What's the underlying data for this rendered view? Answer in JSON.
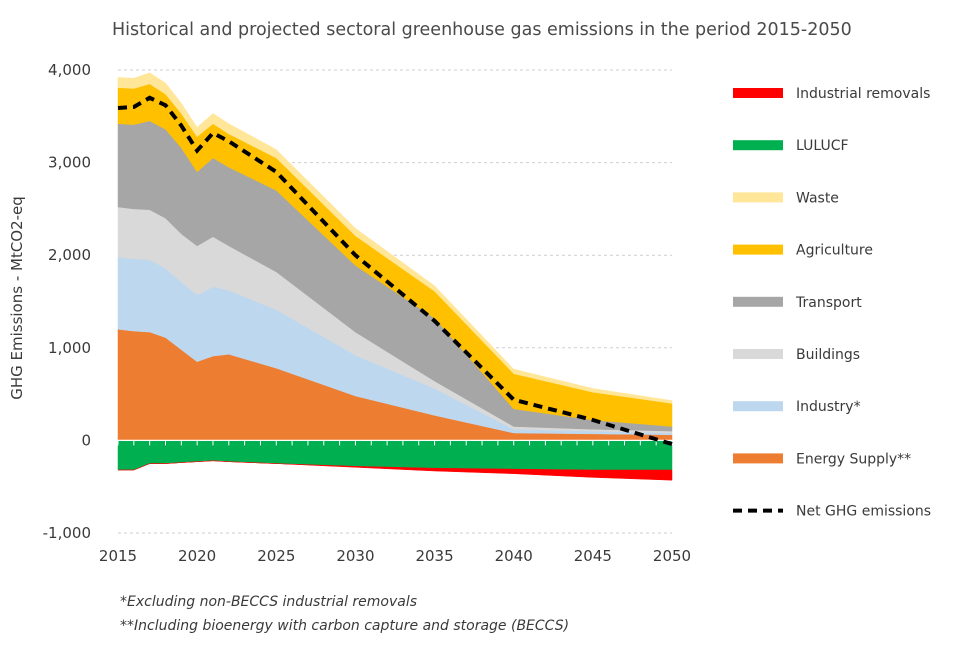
{
  "chart_data": {
    "type": "area",
    "title": "Historical and projected sectoral greenhouse gas emissions in the period 2015-2050",
    "ylabel": "GHG Emissions - MtCO2-eq",
    "xlabel": "",
    "x": [
      2015,
      2016,
      2017,
      2018,
      2019,
      2020,
      2021,
      2022,
      2025,
      2030,
      2035,
      2040,
      2045,
      2050
    ],
    "x_ticks": [
      "2015",
      "2020",
      "2025",
      "2030",
      "2035",
      "2040",
      "2045",
      "2050"
    ],
    "y_ticks": [
      "-1,000",
      "0",
      "1,000",
      "2,000",
      "3,000",
      "4,000"
    ],
    "ylim": [
      -1000,
      4000
    ],
    "xlim": [
      2015,
      2050
    ],
    "grid": true,
    "legend_position": "right",
    "stacked_positive": [
      {
        "name": "Energy Supply**",
        "color": "#ED7D31",
        "values": [
          1200,
          1180,
          1170,
          1110,
          980,
          850,
          910,
          930,
          780,
          480,
          270,
          80,
          70,
          60
        ]
      },
      {
        "name": "Industry*",
        "color": "#BDD7EE",
        "values": [
          780,
          780,
          780,
          750,
          730,
          720,
          750,
          690,
          630,
          440,
          290,
          40,
          30,
          20
        ]
      },
      {
        "name": "Buildings",
        "color": "#D9D9D9",
        "values": [
          540,
          540,
          540,
          540,
          520,
          530,
          540,
          480,
          410,
          250,
          80,
          30,
          20,
          20
        ]
      },
      {
        "name": "Transport",
        "color": "#A6A6A6",
        "values": [
          900,
          910,
          960,
          960,
          930,
          800,
          850,
          850,
          880,
          720,
          680,
          190,
          100,
          50
        ]
      },
      {
        "name": "Agriculture",
        "color": "#FFC000",
        "values": [
          390,
          390,
          400,
          380,
          370,
          380,
          370,
          360,
          350,
          320,
          290,
          380,
          300,
          250
        ]
      },
      {
        "name": "Waste",
        "color": "#FFE699",
        "values": [
          110,
          110,
          120,
          120,
          110,
          100,
          110,
          110,
          90,
          80,
          60,
          50,
          40,
          30
        ]
      }
    ],
    "stacked_negative": [
      {
        "name": "LULUCF",
        "color": "#00B050",
        "values": [
          -320,
          -320,
          -250,
          -250,
          -240,
          -230,
          -220,
          -230,
          -250,
          -280,
          -300,
          -310,
          -320,
          -320
        ]
      },
      {
        "name": "Industrial removals",
        "color": "#FF0000",
        "values": [
          0,
          0,
          0,
          0,
          0,
          0,
          0,
          0,
          0,
          -10,
          -30,
          -50,
          -80,
          -110
        ]
      }
    ],
    "net_line": {
      "name": "Net GHG emissions",
      "color": "#000000",
      "values": [
        3590,
        3600,
        3700,
        3620,
        3400,
        3130,
        3320,
        3230,
        2900,
        2000,
        1290,
        440,
        220,
        -40
      ]
    },
    "legend_order": [
      "Industrial removals",
      "LULUCF",
      "Waste",
      "Agriculture",
      "Transport",
      "Buildings",
      "Industry*",
      "Energy Supply**",
      "Net GHG emissions"
    ]
  },
  "footnotes": [
    "*Excluding non-BECCS industrial removals",
    "**Including bioenergy with carbon capture and storage (BECCS)"
  ]
}
